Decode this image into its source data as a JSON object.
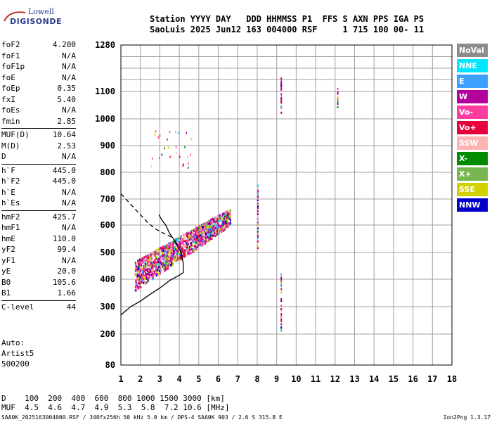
{
  "logo": {
    "line1": "Lowell",
    "line2": "DIGISONDE"
  },
  "header": {
    "line1": "Station YYYY DAY   DDD HHMMSS P1  FFS S AXN PPS IGA PS",
    "line2": "SaoLuis 2025 Jun12 163 004000 RSF     1 715 100 00- 11"
  },
  "params": [
    {
      "label": "foF2",
      "value": "4.200"
    },
    {
      "label": "foF1",
      "value": "N/A"
    },
    {
      "label": "foF1p",
      "value": "N/A"
    },
    {
      "label": "foE",
      "value": "N/A"
    },
    {
      "label": "foEp",
      "value": "0.35"
    },
    {
      "label": "fxI",
      "value": "5.40"
    },
    {
      "label": "foEs",
      "value": "N/A"
    },
    {
      "label": "fmin",
      "value": "2.85"
    },
    {
      "label": "MUF(D)",
      "value": "10.64",
      "sepBefore": true
    },
    {
      "label": "M(D)",
      "value": "2.53"
    },
    {
      "label": "D",
      "value": "N/A"
    },
    {
      "label": "h`F",
      "value": "445.0",
      "sepBefore": true
    },
    {
      "label": "h`F2",
      "value": "445.0"
    },
    {
      "label": "h`E",
      "value": "N/A"
    },
    {
      "label": "h`Es",
      "value": "N/A"
    },
    {
      "label": "hmF2",
      "value": "425.7",
      "sepBefore": true
    },
    {
      "label": "hmF1",
      "value": "N/A"
    },
    {
      "label": "hmE",
      "value": "110.0"
    },
    {
      "label": "yF2",
      "value": "99.4"
    },
    {
      "label": "yF1",
      "value": "N/A"
    },
    {
      "label": "yE",
      "value": "20.0"
    },
    {
      "label": "B0",
      "value": "105.6"
    },
    {
      "label": "B1",
      "value": "1.66"
    },
    {
      "label": "C-level",
      "value": "44",
      "sepBefore": true
    }
  ],
  "auto": {
    "line1": "Auto:",
    "line2": "Artist5",
    "line3": "500200"
  },
  "legend": [
    {
      "label": "NoVal",
      "color": "#8c8c8c"
    },
    {
      "label": "NNE",
      "color": "#00e6ff"
    },
    {
      "label": "E",
      "color": "#3ca0ff"
    },
    {
      "label": "W",
      "color": "#b4009c"
    },
    {
      "label": "Vo-",
      "color": "#ff3ca0"
    },
    {
      "label": "Vo+",
      "color": "#e6003c"
    },
    {
      "label": "SSW",
      "color": "#ffb4b4"
    },
    {
      "label": "X-",
      "color": "#008c00"
    },
    {
      "label": "X+",
      "color": "#78b450"
    },
    {
      "label": "SSE",
      "color": "#d2d200"
    },
    {
      "label": "NNW",
      "color": "#0000c8"
    }
  ],
  "chart_data": {
    "type": "scatter",
    "x_ticks": [
      1,
      2,
      3,
      4,
      5,
      6,
      7,
      8,
      9,
      10,
      11,
      12,
      13,
      14,
      15,
      16,
      17,
      18
    ],
    "y_ticks": [
      80,
      200,
      300,
      400,
      500,
      600,
      700,
      800,
      900,
      1000,
      1100,
      1280
    ],
    "y_tick_labels": [
      "80",
      "200",
      "300",
      "400",
      "500",
      "600",
      "700",
      "800",
      "900",
      "1000",
      "1100",
      "1280"
    ],
    "xlim": [
      1,
      18
    ],
    "ylim": [
      80,
      1280
    ],
    "traces": [
      {
        "name": "main-F-trace",
        "kind": "band",
        "x": [
          1.7,
          6.6
        ],
        "y_low": [
          360,
          600
        ],
        "y_high": [
          470,
          665
        ]
      },
      {
        "name": "spread-upper",
        "kind": "cloud",
        "x": [
          2.5,
          4.8
        ],
        "y": [
          820,
          960
        ]
      },
      {
        "name": "vertical-8",
        "kind": "segment",
        "x": 8.0,
        "y": [
          520,
          760
        ]
      },
      {
        "name": "vertical-9.2a",
        "kind": "segment",
        "x": 9.2,
        "y": [
          1020,
          1160
        ]
      },
      {
        "name": "vertical-9.2b",
        "kind": "segment",
        "x": 9.2,
        "y": [
          210,
          440
        ]
      },
      {
        "name": "vertical-12.1",
        "kind": "segment",
        "x": 12.1,
        "y": [
          1040,
          1120
        ]
      }
    ],
    "profile_solid": [
      [
        1,
        270
      ],
      [
        1.5,
        300
      ],
      [
        2,
        320
      ],
      [
        2.5,
        345
      ],
      [
        3,
        368
      ],
      [
        3.5,
        395
      ],
      [
        4,
        415
      ],
      [
        4.2,
        425
      ],
      [
        4.2,
        460
      ],
      [
        4.1,
        500
      ],
      [
        3.8,
        540
      ],
      [
        3.5,
        570
      ],
      [
        3.3,
        600
      ],
      [
        3.1,
        620
      ],
      [
        2.95,
        640
      ]
    ],
    "profile_dashed": [
      [
        1,
        720
      ],
      [
        1.5,
        680
      ],
      [
        2,
        640
      ],
      [
        2.4,
        608
      ],
      [
        2.8,
        585
      ],
      [
        3.2,
        570
      ],
      [
        3.6,
        556
      ]
    ]
  },
  "dmuf": {
    "d_label": "D",
    "d_values": "100  200  400  600  800 1000 1500 3000 [km]",
    "muf_label": "MUF",
    "muf_values": "4.5  4.6  4.7  4.9  5.3  5.8  7.2 10.6 [MHz]"
  },
  "footer": {
    "left": "SAA0K_2025163004000.RSF / 340fx256h 50 kHz 5.0 km / DPS-4 SAA0K 903 / 2.6 S 315.8 E",
    "right": "Ion2Png 1.3.17"
  }
}
